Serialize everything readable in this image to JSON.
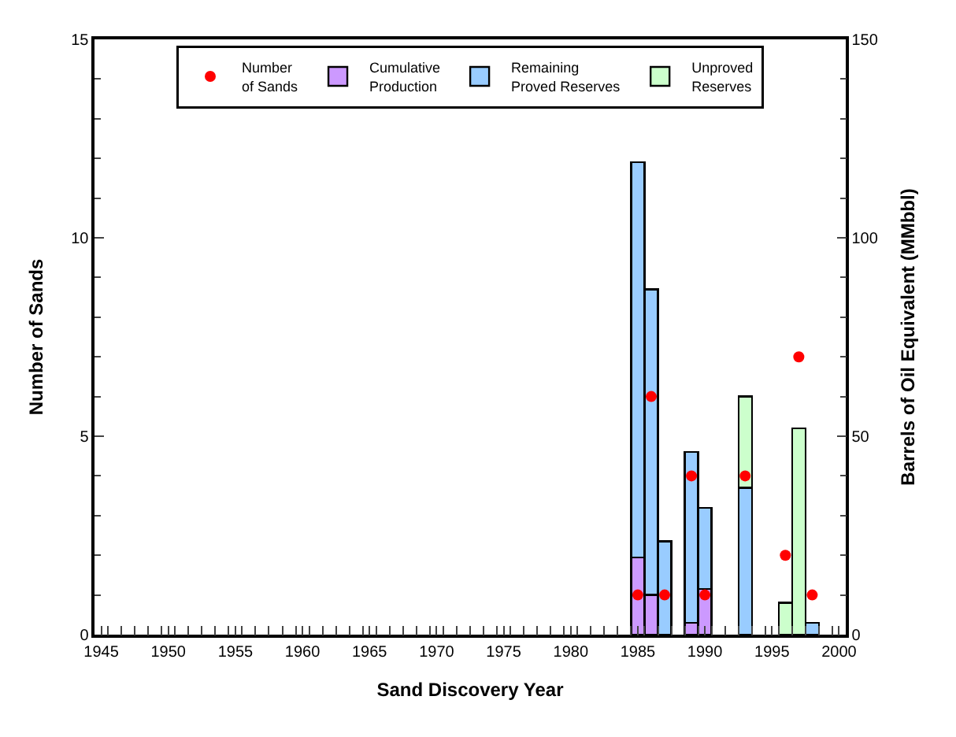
{
  "chart_data": {
    "type": "bar",
    "xlabel": "Sand Discovery Year",
    "ylabel": "Number of Sands",
    "y2label": "Barrels of Oil Equivalent (MMbbl)",
    "x": [
      1985,
      1986,
      1987,
      1989,
      1990,
      1993,
      1996,
      1997,
      1998
    ],
    "stacked": true,
    "series": [
      {
        "name": "Number of Sands",
        "type": "scatter",
        "axis": "y",
        "marker": "circle",
        "color": "#ff0000",
        "values": [
          1,
          6,
          1,
          4,
          1,
          4,
          2,
          7,
          1
        ]
      },
      {
        "name": "Cumulative Production",
        "axis": "y2",
        "color": "#cc99ff",
        "values": [
          19.5,
          10,
          null,
          3,
          11.5,
          null,
          null,
          null,
          null
        ]
      },
      {
        "name": "Remaining Proved Reserves",
        "axis": "y2",
        "color": "#99ccff",
        "values": [
          99.5,
          77,
          23.5,
          43,
          20.5,
          37,
          null,
          null,
          3
        ]
      },
      {
        "name": "Unproved Reserves",
        "axis": "y2",
        "color": "#ccffcc",
        "values": [
          null,
          null,
          null,
          null,
          null,
          23,
          8,
          52,
          null
        ]
      }
    ],
    "xlim": [
      1944.5,
      2000.5
    ],
    "xticks": [
      1945,
      1950,
      1955,
      1960,
      1965,
      1970,
      1975,
      1980,
      1985,
      1990,
      1995,
      2000
    ],
    "ylim": [
      0,
      15
    ],
    "yticks": [
      0,
      5,
      10,
      15
    ],
    "y2lim": [
      0,
      150
    ],
    "y2ticks": [
      0,
      50,
      100,
      150
    ],
    "legend": "top"
  }
}
